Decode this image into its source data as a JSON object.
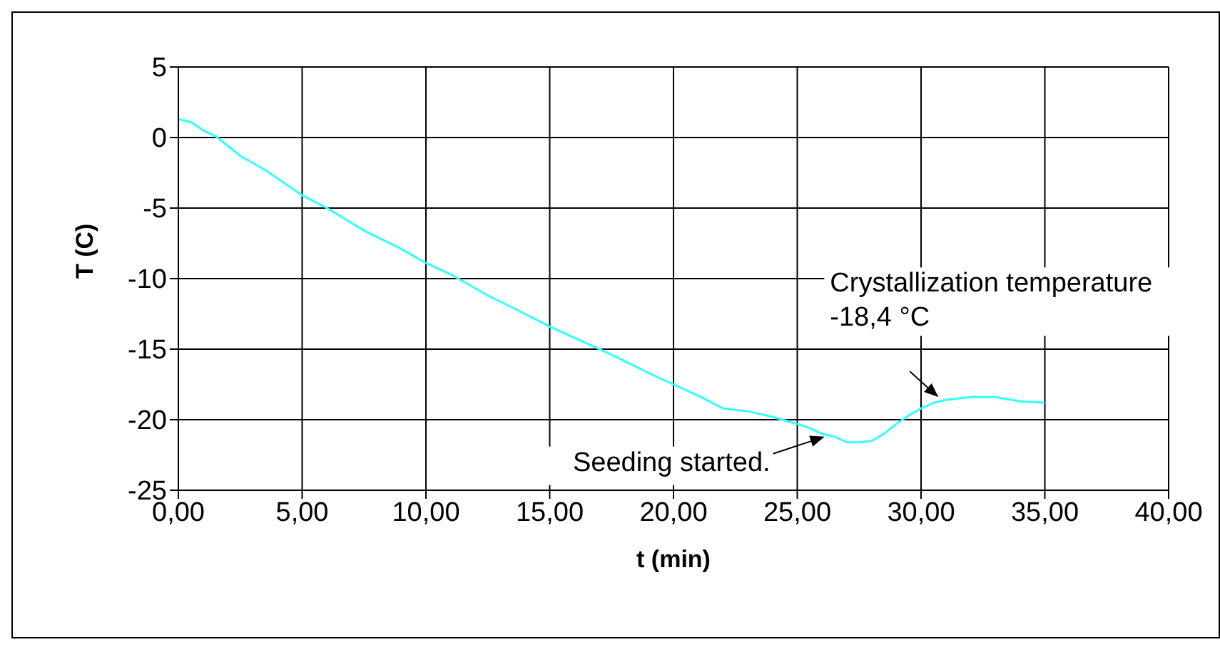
{
  "chart_data": {
    "type": "line",
    "xlabel": "t (min)",
    "ylabel": "T (C)",
    "xlim": [
      0,
      40
    ],
    "ylim": [
      -25,
      5
    ],
    "xticks": [
      {
        "value": 0,
        "label": "0,00"
      },
      {
        "value": 5,
        "label": "5,00"
      },
      {
        "value": 10,
        "label": "10,00"
      },
      {
        "value": 15,
        "label": "15,00"
      },
      {
        "value": 20,
        "label": "20,00"
      },
      {
        "value": 25,
        "label": "25,00"
      },
      {
        "value": 30,
        "label": "30,00"
      },
      {
        "value": 35,
        "label": "35,00"
      },
      {
        "value": 40,
        "label": "40,00"
      }
    ],
    "yticks": [
      -25,
      -20,
      -15,
      -10,
      -5,
      0,
      5
    ],
    "grid": true,
    "marker": "none",
    "series": [
      {
        "color": "#33ffff",
        "x": [
          0,
          0.5,
          1,
          1.5,
          2.5,
          3.5,
          5,
          6,
          7.5,
          9,
          10,
          11,
          12.5,
          14,
          15,
          16,
          17.5,
          19,
          20,
          21,
          22,
          23,
          24,
          25,
          25.5,
          26,
          26.5,
          27,
          27.5,
          28,
          28.5,
          29,
          29.5,
          30,
          30.5,
          31,
          32,
          33,
          34,
          35
        ],
        "values": [
          1.3,
          1.1,
          0.5,
          0.1,
          -1.3,
          -2.3,
          -4.1,
          -5,
          -6.6,
          -7.9,
          -8.9,
          -9.7,
          -11.2,
          -12.5,
          -13.4,
          -14.2,
          -15.4,
          -16.7,
          -17.5,
          -18.3,
          -19.2,
          -19.4,
          -19.8,
          -20.3,
          -20.6,
          -21,
          -21.2,
          -21.6,
          -21.6,
          -21.5,
          -21,
          -20.3,
          -19.7,
          -19.2,
          -18.8,
          -18.6,
          -18.4,
          -18.4,
          -18.7,
          -18.8
        ]
      }
    ],
    "annotations": [
      {
        "text": "Seeding started.",
        "x": 26.1,
        "y": -21.2
      },
      {
        "text": "Crystallization temperature\n-18,4 °C",
        "x": 30.7,
        "y": -18.4
      }
    ]
  }
}
